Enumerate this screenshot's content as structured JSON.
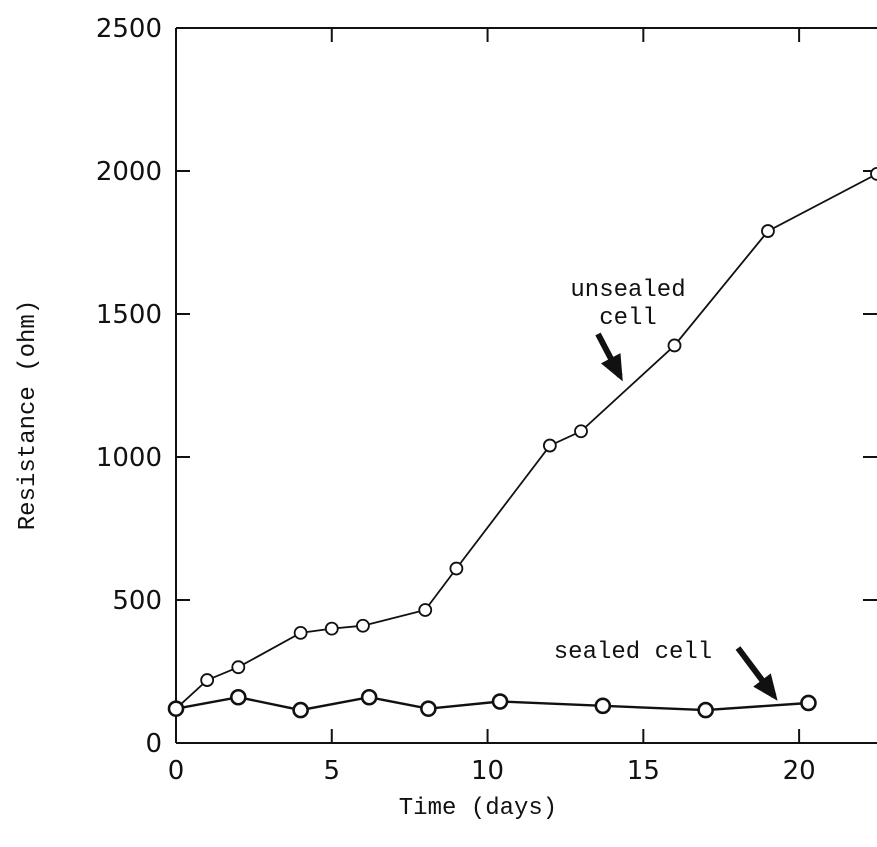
{
  "chart_data": {
    "type": "line",
    "xlabel": "Time (days)",
    "ylabel": "Resistance (ohm)",
    "xlim": [
      0,
      22.5
    ],
    "ylim": [
      0,
      2500
    ],
    "xticks": [
      0,
      5,
      10,
      15,
      20
    ],
    "yticks": [
      0,
      500,
      1000,
      1500,
      2000,
      2500
    ],
    "grid": false,
    "legend": "none",
    "series": [
      {
        "key": "unsealed",
        "x": [
          0,
          1,
          2,
          4,
          5,
          6,
          8,
          9,
          12,
          13,
          16,
          19,
          22.5
        ],
        "y": [
          120,
          220,
          265,
          385,
          400,
          410,
          465,
          610,
          1040,
          1090,
          1390,
          1790,
          1990
        ]
      },
      {
        "key": "sealed",
        "x": [
          0,
          2,
          4,
          6.2,
          8.1,
          10.4,
          13.7,
          17,
          20.3
        ],
        "y": [
          120,
          160,
          115,
          160,
          120,
          145,
          130,
          115,
          140
        ]
      }
    ],
    "annotations": [
      {
        "key": "unsealed",
        "lines": [
          "unsealed",
          "cell"
        ]
      },
      {
        "key": "sealed",
        "lines": [
          "sealed cell"
        ]
      }
    ]
  }
}
